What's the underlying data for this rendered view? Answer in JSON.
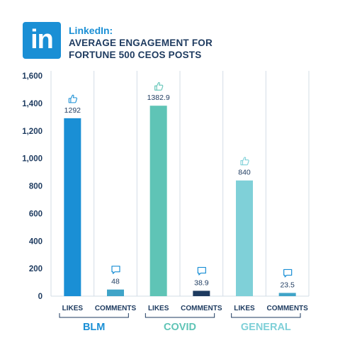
{
  "brand": {
    "logo_text": "in",
    "color": "#1a8fd5"
  },
  "title": {
    "brand": "LinkedIn:",
    "line1": "AVERAGE ENGAGEMENT FOR",
    "line2": "FORTUNE 500 CEOS POSTS"
  },
  "chart_data": {
    "type": "bar",
    "title": "LinkedIn: AVERAGE ENGAGEMENT FOR FORTUNE 500 CEOS POSTS",
    "ylim": [
      0,
      1600
    ],
    "yticks": [
      0,
      200,
      400,
      600,
      800,
      "1,000",
      "1,200",
      "1,400",
      "1,600"
    ],
    "ytick_values": [
      0,
      200,
      400,
      600,
      800,
      1000,
      1200,
      1400,
      1600
    ],
    "grid": false,
    "groups": [
      {
        "name": "BLM",
        "color": "#1a8fd5",
        "bars": [
          {
            "category": "LIKES",
            "value": 1292,
            "label": "1292",
            "color": "#1a8fd5",
            "icon": "thumbs-up-icon"
          },
          {
            "category": "COMMENTS",
            "value": 48,
            "label": "48",
            "color": "#3fa4c8",
            "icon": "comment-icon"
          }
        ]
      },
      {
        "name": "COVID",
        "color": "#5fc4b6",
        "bars": [
          {
            "category": "LIKES",
            "value": 1382.9,
            "label": "1382.9",
            "color": "#5fc4b6",
            "icon": "thumbs-up-icon"
          },
          {
            "category": "COMMENTS",
            "value": 38.9,
            "label": "38.9",
            "color": "#1d3a5f",
            "icon": "comment-icon"
          }
        ]
      },
      {
        "name": "GENERAL",
        "color": "#7fd0d8",
        "bars": [
          {
            "category": "LIKES",
            "value": 840,
            "label": "840",
            "color": "#7fd0d8",
            "icon": "thumbs-up-icon"
          },
          {
            "category": "COMMENTS",
            "value": 23.5,
            "label": "23.5",
            "color": "#3fa4c8",
            "icon": "comment-icon"
          }
        ]
      }
    ]
  }
}
